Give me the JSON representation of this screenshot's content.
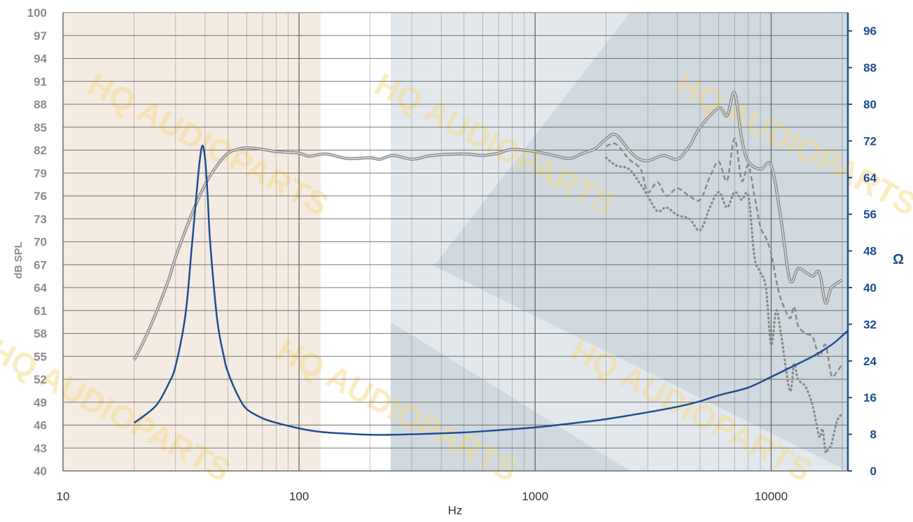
{
  "chart_data": {
    "type": "line",
    "title": "",
    "xlabel": "Hz",
    "ylabel": "dB SPL",
    "y2label": "Ω",
    "x_scale": "log",
    "xlim": [
      10,
      22000
    ],
    "ylim": [
      40,
      100
    ],
    "y2lim": [
      0,
      100
    ],
    "grid": true,
    "x_ticks": [
      {
        "v": 10,
        "label": "10"
      },
      {
        "v": 100,
        "label": "100"
      },
      {
        "v": 1000,
        "label": "1000"
      },
      {
        "v": 10000,
        "label": "10000"
      }
    ],
    "y_ticks": [
      40,
      43,
      46,
      49,
      52,
      55,
      58,
      61,
      64,
      67,
      70,
      73,
      76,
      79,
      82,
      85,
      88,
      91,
      94,
      97,
      100
    ],
    "y2_ticks": [
      0,
      8,
      16,
      24,
      32,
      40,
      48,
      56,
      64,
      72,
      80,
      88,
      96
    ],
    "watermark": "HQ AUDIOPARTS",
    "colors": {
      "spl": "#8a8a8a",
      "impedance": "#1f4e8f",
      "grid": "#555555"
    },
    "series": [
      {
        "axis": "left",
        "style": "solid-double",
        "x": [
          20,
          22,
          25,
          28,
          30,
          35,
          40,
          45,
          50,
          55,
          60,
          70,
          80,
          100,
          110,
          130,
          160,
          200,
          220,
          250,
          300,
          350,
          400,
          500,
          600,
          700,
          800,
          1000,
          1200,
          1400,
          1600,
          1800,
          2000,
          2200,
          2500,
          2700,
          3000,
          3500,
          4000,
          4500,
          5000,
          6000,
          6500,
          7000,
          7500,
          8000,
          9000,
          10000,
          11000,
          12000,
          13000,
          14000,
          15000,
          16000,
          17000,
          18000,
          20000
        ],
        "values": [
          54.5,
          57,
          61,
          65,
          68,
          73.5,
          77.5,
          80,
          81.6,
          82.1,
          82.3,
          82.1,
          81.8,
          81.6,
          81.2,
          81.5,
          80.9,
          81.0,
          80.8,
          81.3,
          80.8,
          81.2,
          81.4,
          81.5,
          81.3,
          81.6,
          82.1,
          81.8,
          81.3,
          80.9,
          81.6,
          82.2,
          83.5,
          84.0,
          82.0,
          81.0,
          80.6,
          81.3,
          80.8,
          82.5,
          85.0,
          87.5,
          86.5,
          89.5,
          83.5,
          80.5,
          79.5,
          80.0,
          73.0,
          65.0,
          66.5,
          66.0,
          65.5,
          66.0,
          62.0,
          64.0,
          65.0
        ]
      },
      {
        "axis": "left",
        "style": "dashed",
        "x": [
          2000,
          2200,
          2500,
          2800,
          3000,
          3300,
          3600,
          4000,
          4500,
          5000,
          5500,
          6000,
          6500,
          7000,
          7500,
          8000,
          8500,
          9000,
          9500,
          10000,
          10500,
          11000,
          12000,
          12500,
          13000,
          14000,
          15000,
          16000,
          17000,
          18000,
          19000,
          20000
        ],
        "values": [
          82.5,
          82.8,
          80.8,
          79.5,
          76.5,
          77.8,
          76.0,
          77.0,
          76.0,
          75.5,
          78.5,
          80.5,
          78.0,
          83.5,
          78.0,
          80.0,
          76.0,
          72.0,
          70.5,
          68.5,
          65.0,
          62.5,
          60.0,
          61.5,
          59.0,
          58.0,
          57.5,
          55.0,
          56.5,
          52.5,
          53.0,
          54.0
        ]
      },
      {
        "axis": "left",
        "style": "dotted",
        "x": [
          2000,
          2200,
          2500,
          2800,
          3000,
          3300,
          3600,
          4000,
          4500,
          5000,
          5500,
          6000,
          6500,
          7000,
          7500,
          8000,
          8500,
          9000,
          9500,
          10000,
          10500,
          11000,
          12000,
          12500,
          13000,
          14000,
          15000,
          16000,
          16500,
          17000,
          17500,
          18000,
          19000,
          20000
        ],
        "values": [
          81.0,
          80.0,
          79.5,
          77.5,
          76.0,
          74.0,
          74.5,
          73.5,
          73.0,
          71.5,
          74.5,
          76.5,
          74.5,
          76.5,
          75.5,
          76.0,
          68.0,
          66.0,
          64.0,
          56.5,
          61.0,
          58.0,
          50.5,
          54.0,
          52.0,
          51.0,
          48.5,
          44.5,
          45.5,
          42.5,
          43.0,
          43.5,
          46.5,
          47.5
        ]
      },
      {
        "axis": "right",
        "style": "solid",
        "x": [
          20,
          22,
          25,
          28,
          30,
          33,
          35,
          37,
          38,
          39,
          40,
          41,
          42,
          45,
          48,
          50,
          55,
          60,
          70,
          80,
          100,
          120,
          150,
          200,
          250,
          300,
          500,
          700,
          1000,
          1500,
          2000,
          3000,
          4000,
          5000,
          6000,
          8000,
          10000,
          12000,
          15000,
          18000,
          20000,
          21000
        ],
        "values": [
          10.5,
          12,
          14.5,
          19,
          23,
          34,
          48,
          62,
          68,
          71,
          68,
          60,
          50,
          33,
          25,
          21.5,
          16.5,
          13.5,
          11.5,
          10.5,
          9.3,
          8.6,
          8.2,
          7.9,
          7.9,
          8.0,
          8.4,
          8.9,
          9.5,
          10.5,
          11.3,
          12.8,
          14.0,
          15.2,
          16.5,
          18.2,
          20.5,
          22.5,
          25.0,
          27.5,
          29.5,
          30.5
        ]
      }
    ]
  }
}
